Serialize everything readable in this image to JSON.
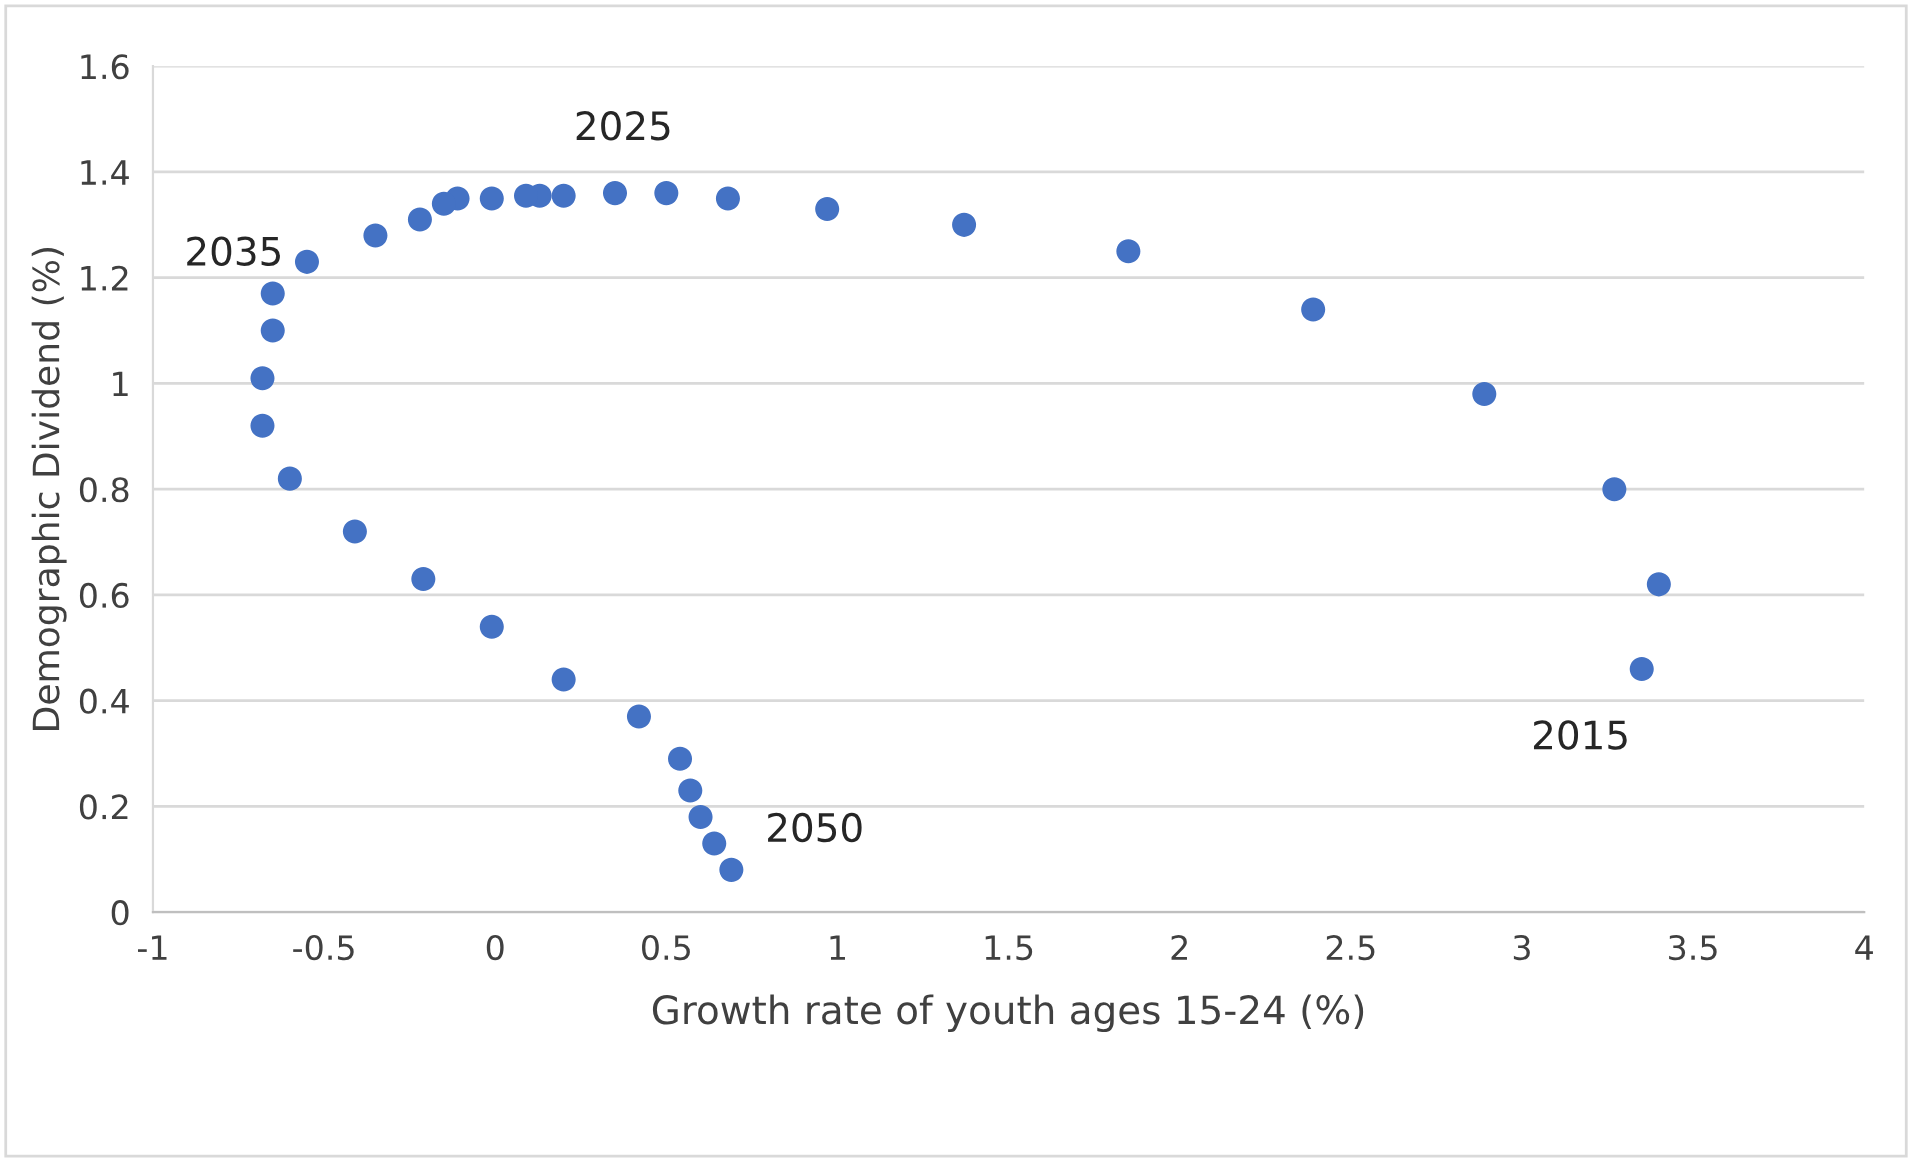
{
  "chart_data": {
    "type": "scatter",
    "xlabel": "Growth rate of youth ages 15-24 (%)",
    "ylabel": "Demographic Dividend (%)",
    "x": [
      3.35,
      3.4,
      3.27,
      2.89,
      2.39,
      1.85,
      1.37,
      0.97,
      0.68,
      0.5,
      0.35,
      0.2,
      0.13,
      0.09,
      -0.01,
      -0.11,
      -0.15,
      -0.22,
      -0.35,
      -0.55,
      -0.65,
      -0.65,
      -0.68,
      -0.68,
      -0.6,
      -0.41,
      -0.21,
      -0.01,
      0.2,
      0.42,
      0.54,
      0.57,
      0.6,
      0.64,
      0.69
    ],
    "values": [
      0.46,
      0.62,
      0.8,
      0.98,
      1.14,
      1.25,
      1.3,
      1.33,
      1.35,
      1.36,
      1.36,
      1.355,
      1.355,
      1.355,
      1.35,
      1.35,
      1.34,
      1.31,
      1.28,
      1.23,
      1.17,
      1.1,
      1.01,
      0.92,
      0.82,
      0.72,
      0.63,
      0.54,
      0.44,
      0.37,
      0.29,
      0.23,
      0.18,
      0.13,
      0.08
    ],
    "color": "#4472c4",
    "marker": "circle",
    "xlim": [
      -1,
      4
    ],
    "xticks": [
      -1,
      -0.5,
      0,
      0.5,
      1,
      1.5,
      2,
      2.5,
      3,
      3.5,
      4
    ],
    "ylim": [
      0,
      1.6
    ],
    "yticks": [
      0,
      0.2,
      0.4,
      0.6,
      0.8,
      1,
      1.2,
      1.4,
      1.6
    ],
    "grid": "y",
    "legend": false,
    "annotations": [
      {
        "text": "2015",
        "x": 3.35,
        "y": 0.46
      },
      {
        "text": "2025",
        "x": 0.35,
        "y": 1.36
      },
      {
        "text": "2035",
        "x": -0.65,
        "y": 1.17
      },
      {
        "text": "2050",
        "x": 0.69,
        "y": 0.08
      }
    ]
  }
}
